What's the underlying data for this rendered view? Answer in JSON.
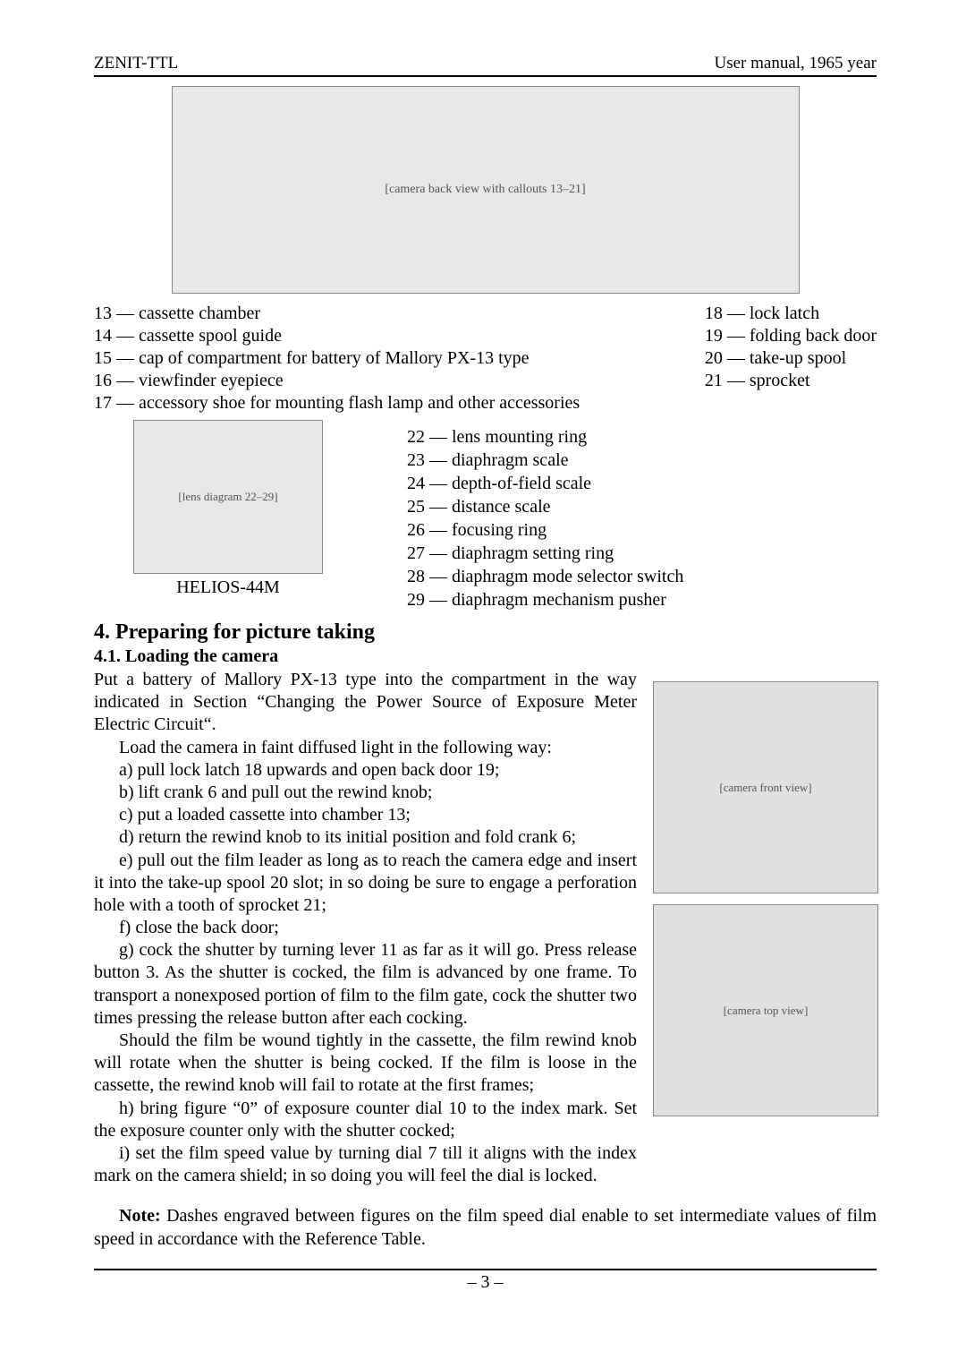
{
  "header": {
    "left": "ZENIT-TTL",
    "right": "User manual, 1965 year"
  },
  "figures": {
    "top_placeholder": "[camera back view with callouts 13–21]",
    "lens_placeholder": "[lens diagram 22–29]",
    "lens_caption": "HELIOS-44M",
    "side1_placeholder": "[camera front view]",
    "side2_placeholder": "[camera top view]"
  },
  "parts_left": "13 — cassette chamber\n14 — cassette spool guide\n15 — cap of compartment for battery of Mallory PX-13 type\n16 — viewfinder eyepiece\n17 — accessory shoe for mounting flash lamp and other accessories",
  "parts_right": "18 — lock latch\n19 — folding back door\n20 — take-up spool\n21 — sprocket",
  "lens_list": "22 — lens mounting ring\n23 — diaphragm scale\n24 — depth-of-field scale\n25 — distance scale\n26 — focusing ring\n27 — diaphragm setting ring\n28 — diaphragm mode selector switch\n29 — diaphragm mechanism pusher",
  "section_title": "4. Preparing for picture taking",
  "sub_title": "4.1. Loading the camera",
  "body": {
    "p1": "Put a battery of Mallory PX-13 type into the compartment in the way indicated in Section “Changing the Power Source of Exposure Meter Electric Circuit“.",
    "p2": "Load the camera in faint diffused light in the following way:",
    "p3": "a) pull lock latch 18 upwards and open back door 19;",
    "p4": "b) lift crank 6 and pull out the rewind knob;",
    "p5": "c) put a loaded cassette into chamber 13;",
    "p6": "d) return the rewind knob to its initial position and fold crank 6;",
    "p7": "e) pull out the film leader as long as to reach the camera edge and insert it into the take-up spool 20 slot; in so doing be sure to engage a perforation hole with a tooth of sprocket 21;",
    "p8": "f) close the back door;",
    "p9": "g) cock the shutter by turning lever 11 as far as it will go. Press release button 3. As the shutter is cocked, the film is advanced by one frame. To transport a nonexposed portion of film to the film gate, cock the shutter two times pressing the release button after each cocking.",
    "p10": "Should the film be wound tightly in the cassette, the film rewind knob will rotate when the shutter is being cocked. If the film is loose in the cassette, the rewind knob will fail to rotate at the first frames;",
    "p11": "h) bring figure “0” of exposure counter dial 10 to the index mark. Set the exposure counter only with the shutter cocked;",
    "p12": "i) set the film speed value by turning dial 7 till it aligns with the index mark on the camera shield; in so doing you will feel the dial is locked.",
    "note_label": "Note:",
    "note_text": " Dashes engraved between figures on the film speed dial enable to set intermediate values of film speed in accordance with the Reference Table."
  },
  "page_number": "– 3 –"
}
